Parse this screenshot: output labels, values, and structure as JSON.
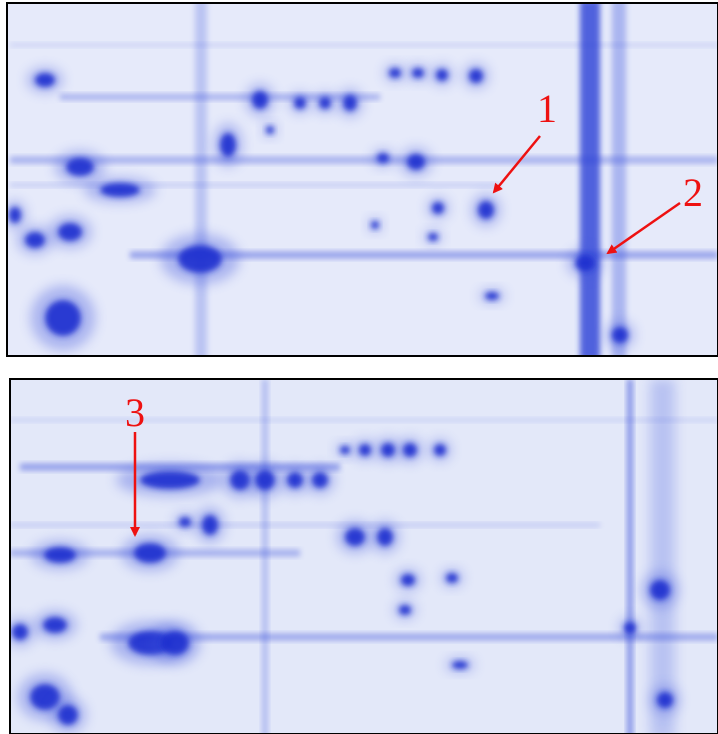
{
  "panels": [
    {
      "annotations": [
        "1",
        "2"
      ]
    },
    {
      "annotations": [
        "3"
      ]
    }
  ]
}
